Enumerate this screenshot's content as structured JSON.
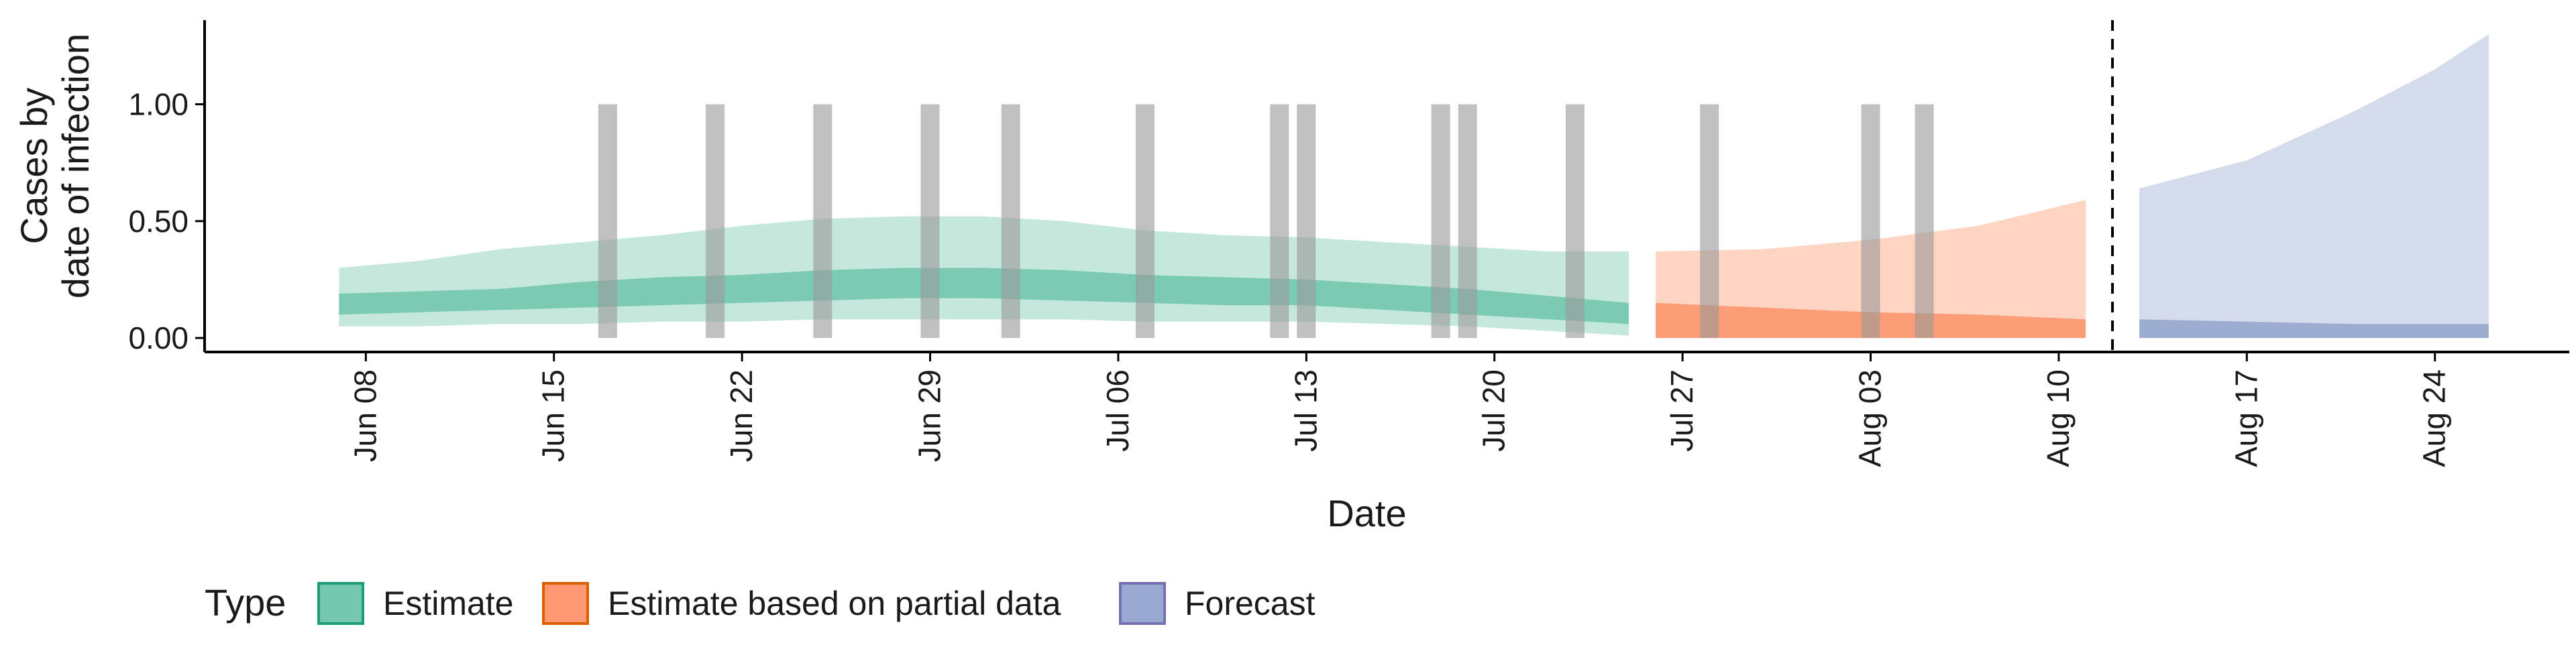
{
  "chart_data": {
    "type": "area",
    "title": "",
    "xlabel": "Date",
    "ylabel_lines": [
      "Cases by",
      "date of infection"
    ],
    "x_ticks": [
      "Jun 08",
      "Jun 15",
      "Jun 22",
      "Jun 29",
      "Jul 06",
      "Jul 13",
      "Jul 20",
      "Jul 27",
      "Aug 03",
      "Aug 10",
      "Aug 17",
      "Aug 24"
    ],
    "y_ticks": [
      "0.00",
      "0.50",
      "1.00"
    ],
    "x_range": [
      "2020-06-02",
      "2020-08-29"
    ],
    "ylim": [
      -0.06,
      1.36
    ],
    "forecast_start": "2020-08-12",
    "legend": {
      "title": "Type",
      "placement": "bottom",
      "entries": [
        {
          "name": "Estimate",
          "fill": "#66c2a5",
          "stroke": "#1b9e77"
        },
        {
          "name": "Estimate based on partial data",
          "fill": "#fc8d62",
          "stroke": "#d95f02"
        },
        {
          "name": "Forecast",
          "fill": "#8da0cb",
          "stroke": "#7570b3"
        }
      ]
    },
    "gray_bar_dates": [
      "2020-06-17",
      "2020-06-21",
      "2020-06-25",
      "2020-06-29",
      "2020-07-02",
      "2020-07-07",
      "2020-07-12",
      "2020-07-13",
      "2020-07-18",
      "2020-07-19",
      "2020-07-23",
      "2020-07-28",
      "2020-08-03",
      "2020-08-05"
    ],
    "gray_bar_range": [
      0,
      1.0
    ],
    "series": [
      {
        "name": "Estimate",
        "color": "#1b9e77",
        "points": [
          {
            "x": "2020-06-07",
            "lo90": 0.05,
            "hi90": 0.3,
            "lo50": 0.1,
            "hi50": 0.19
          },
          {
            "x": "2020-06-10",
            "lo90": 0.05,
            "hi90": 0.33,
            "lo50": 0.11,
            "hi50": 0.2
          },
          {
            "x": "2020-06-13",
            "lo90": 0.06,
            "hi90": 0.38,
            "lo50": 0.12,
            "hi50": 0.21
          },
          {
            "x": "2020-06-16",
            "lo90": 0.06,
            "hi90": 0.41,
            "lo50": 0.13,
            "hi50": 0.24
          },
          {
            "x": "2020-06-19",
            "lo90": 0.07,
            "hi90": 0.44,
            "lo50": 0.14,
            "hi50": 0.26
          },
          {
            "x": "2020-06-22",
            "lo90": 0.07,
            "hi90": 0.48,
            "lo50": 0.15,
            "hi50": 0.27
          },
          {
            "x": "2020-06-25",
            "lo90": 0.08,
            "hi90": 0.51,
            "lo50": 0.16,
            "hi50": 0.29
          },
          {
            "x": "2020-06-28",
            "lo90": 0.08,
            "hi90": 0.52,
            "lo50": 0.17,
            "hi50": 0.3
          },
          {
            "x": "2020-07-01",
            "lo90": 0.08,
            "hi90": 0.52,
            "lo50": 0.17,
            "hi50": 0.3
          },
          {
            "x": "2020-07-04",
            "lo90": 0.08,
            "hi90": 0.5,
            "lo50": 0.16,
            "hi50": 0.29
          },
          {
            "x": "2020-07-07",
            "lo90": 0.07,
            "hi90": 0.46,
            "lo50": 0.15,
            "hi50": 0.27
          },
          {
            "x": "2020-07-10",
            "lo90": 0.07,
            "hi90": 0.44,
            "lo50": 0.14,
            "hi50": 0.26
          },
          {
            "x": "2020-07-13",
            "lo90": 0.07,
            "hi90": 0.43,
            "lo50": 0.14,
            "hi50": 0.25
          },
          {
            "x": "2020-07-16",
            "lo90": 0.06,
            "hi90": 0.41,
            "lo50": 0.12,
            "hi50": 0.23
          },
          {
            "x": "2020-07-19",
            "lo90": 0.05,
            "hi90": 0.39,
            "lo50": 0.1,
            "hi50": 0.21
          },
          {
            "x": "2020-07-22",
            "lo90": 0.03,
            "hi90": 0.37,
            "lo50": 0.08,
            "hi50": 0.18
          },
          {
            "x": "2020-07-25",
            "lo90": 0.01,
            "hi90": 0.37,
            "lo50": 0.06,
            "hi50": 0.15
          }
        ]
      },
      {
        "name": "Estimate based on partial data",
        "color": "#d95f02",
        "points": [
          {
            "x": "2020-07-26",
            "lo90": 0.0,
            "hi90": 0.37,
            "lo50": 0.0,
            "hi50": 0.15
          },
          {
            "x": "2020-07-30",
            "lo90": 0.0,
            "hi90": 0.38,
            "lo50": 0.0,
            "hi50": 0.13
          },
          {
            "x": "2020-08-03",
            "lo90": 0.0,
            "hi90": 0.42,
            "lo50": 0.0,
            "hi50": 0.11
          },
          {
            "x": "2020-08-07",
            "lo90": 0.0,
            "hi90": 0.48,
            "lo50": 0.0,
            "hi50": 0.1
          },
          {
            "x": "2020-08-11",
            "lo90": 0.0,
            "hi90": 0.59,
            "lo50": 0.0,
            "hi50": 0.08
          }
        ]
      },
      {
        "name": "Forecast",
        "color": "#7570b3",
        "points": [
          {
            "x": "2020-08-13",
            "lo90": 0.0,
            "hi90": 0.64,
            "lo50": 0.0,
            "hi50": 0.08
          },
          {
            "x": "2020-08-17",
            "lo90": 0.0,
            "hi90": 0.76,
            "lo50": 0.0,
            "hi50": 0.07
          },
          {
            "x": "2020-08-21",
            "lo90": 0.0,
            "hi90": 0.97,
            "lo50": 0.0,
            "hi50": 0.06
          },
          {
            "x": "2020-08-24",
            "lo90": 0.0,
            "hi90": 1.15,
            "lo50": 0.0,
            "hi50": 0.06
          },
          {
            "x": "2020-08-26",
            "lo90": 0.0,
            "hi90": 1.3,
            "lo50": 0.0,
            "hi50": 0.06
          }
        ]
      }
    ]
  }
}
